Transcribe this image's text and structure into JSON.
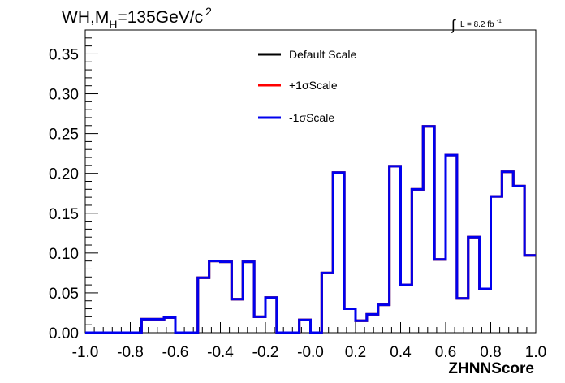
{
  "header": {
    "title_main": "WH,M",
    "title_sub": "H",
    "title_rest": "=135GeV/c",
    "title_sup": "2",
    "lumi_integral": "∫",
    "lumi_text": "L = 8.2 fb",
    "lumi_sup": "-1"
  },
  "chart_data": {
    "type": "histogram-step",
    "xlabel": "ZHNNScore",
    "ylabel": "",
    "xlim": [
      -1.0,
      1.0
    ],
    "ylim": [
      0.0,
      0.38
    ],
    "x_ticks": [
      "-1.0",
      "-0.8",
      "-0.6",
      "-0.4",
      "-0.2",
      "-0.0",
      "0.2",
      "0.4",
      "0.6",
      "0.8",
      "1.0"
    ],
    "y_ticks": [
      "0.00",
      "0.05",
      "0.10",
      "0.15",
      "0.20",
      "0.25",
      "0.30",
      "0.35"
    ],
    "bin_edges": [
      -1.0,
      -0.95,
      -0.9,
      -0.85,
      -0.8,
      -0.75,
      -0.7,
      -0.65,
      -0.6,
      -0.55,
      -0.5,
      -0.45,
      -0.4,
      -0.35,
      -0.3,
      -0.25,
      -0.2,
      -0.15,
      -0.1,
      -0.05,
      0.0,
      0.05,
      0.1,
      0.15,
      0.2,
      0.25,
      0.3,
      0.35,
      0.4,
      0.45,
      0.5,
      0.55,
      0.6,
      0.65,
      0.7,
      0.75,
      0.8,
      0.85,
      0.9,
      0.95,
      1.0
    ],
    "series": [
      {
        "name": "Default Scale",
        "color": "#000000",
        "values": [
          0,
          0,
          0,
          0,
          0,
          0.017,
          0.017,
          0.019,
          0,
          0,
          0.069,
          0.09,
          0.089,
          0.042,
          0.089,
          0.02,
          0.044,
          0,
          0,
          0.016,
          0,
          0.075,
          0.201,
          0.03,
          0.015,
          0.023,
          0.035,
          0.209,
          0.06,
          0.18,
          0.259,
          0.092,
          0.223,
          0.043,
          0.12,
          0.055,
          0.171,
          0.202,
          0.184,
          0.097
        ]
      },
      {
        "name": "+1σScale",
        "color": "#ff0000",
        "values": [
          0,
          0,
          0,
          0,
          0,
          0.017,
          0.017,
          0.019,
          0,
          0,
          0.069,
          0.09,
          0.089,
          0.042,
          0.089,
          0.02,
          0.044,
          0,
          0,
          0.016,
          0,
          0.075,
          0.201,
          0.03,
          0.015,
          0.023,
          0.035,
          0.209,
          0.06,
          0.18,
          0.259,
          0.092,
          0.223,
          0.043,
          0.12,
          0.055,
          0.171,
          0.202,
          0.184,
          0.097
        ]
      },
      {
        "name": "-1σScale",
        "color": "#0000ee",
        "values": [
          0,
          0,
          0,
          0,
          0,
          0.017,
          0.017,
          0.019,
          0,
          0,
          0.069,
          0.09,
          0.089,
          0.042,
          0.089,
          0.02,
          0.044,
          0,
          0,
          0.016,
          0,
          0.075,
          0.201,
          0.03,
          0.015,
          0.023,
          0.035,
          0.209,
          0.06,
          0.18,
          0.259,
          0.092,
          0.223,
          0.043,
          0.12,
          0.055,
          0.171,
          0.202,
          0.184,
          0.097
        ]
      }
    ],
    "legend": {
      "placement": "top-center",
      "entries": [
        "Default Scale",
        "+1σScale",
        "-1σScale"
      ]
    },
    "grid": false
  }
}
